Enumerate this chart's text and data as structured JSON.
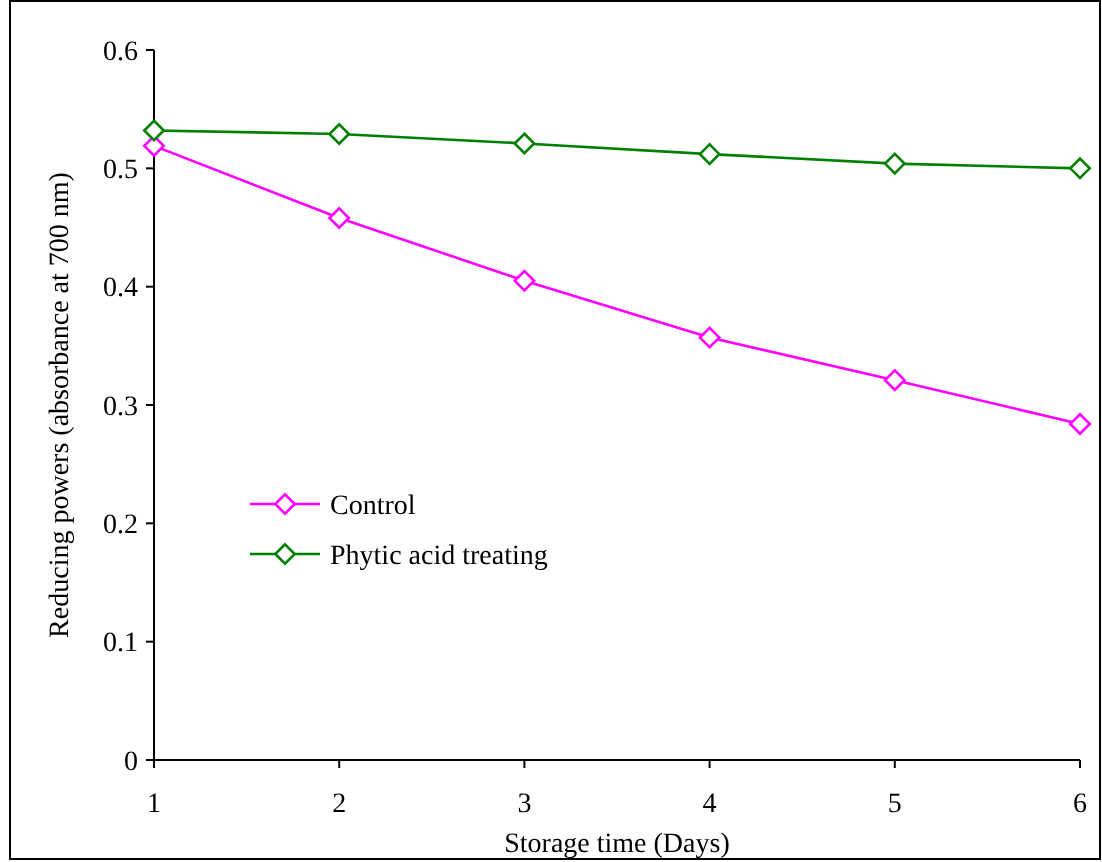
{
  "chart_data": {
    "type": "line",
    "xlabel": "Storage time (Days)",
    "ylabel": "Reducing powers (absorbance at 700 nm)",
    "x": [
      1,
      2,
      3,
      4,
      5,
      6
    ],
    "xlim": [
      1,
      6
    ],
    "xticks": [
      1,
      2,
      3,
      4,
      5,
      6
    ],
    "ylim": [
      0,
      0.6
    ],
    "yticks": [
      0,
      0.1,
      0.2,
      0.3,
      0.4,
      0.5,
      0.6
    ],
    "grid": false,
    "legend": "center left",
    "marker": "diamond",
    "line_style": "solid",
    "series": [
      {
        "name": "Control",
        "color": "#ff00ff",
        "values": [
          0.519,
          0.458,
          0.405,
          0.357,
          0.321,
          0.284
        ]
      },
      {
        "name": "Phytic acid treating",
        "color": "#008000",
        "values": [
          0.532,
          0.529,
          0.521,
          0.512,
          0.504,
          0.5
        ]
      }
    ]
  }
}
